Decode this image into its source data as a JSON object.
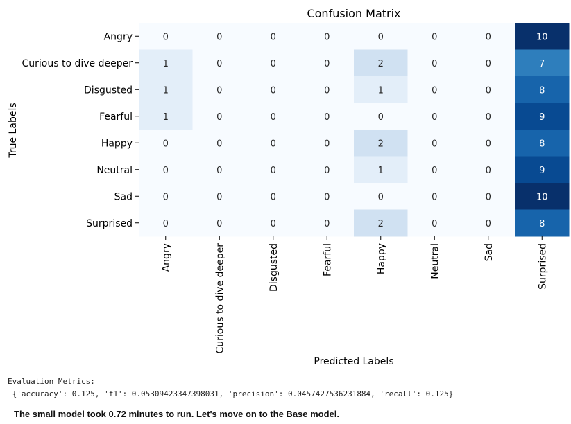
{
  "chart_data": {
    "type": "heatmap",
    "title": "Confusion Matrix",
    "xlabel": "Predicted Labels",
    "ylabel": "True Labels",
    "x_categories": [
      "Angry",
      "Curious to dive deeper",
      "Disgusted",
      "Fearful",
      "Happy",
      "Neutral",
      "Sad",
      "Surprised"
    ],
    "y_categories": [
      "Angry",
      "Curious to dive deeper",
      "Disgusted",
      "Fearful",
      "Happy",
      "Neutral",
      "Sad",
      "Surprised"
    ],
    "values": [
      [
        0,
        0,
        0,
        0,
        0,
        0,
        0,
        10
      ],
      [
        1,
        0,
        0,
        0,
        2,
        0,
        0,
        7
      ],
      [
        1,
        0,
        0,
        0,
        1,
        0,
        0,
        8
      ],
      [
        1,
        0,
        0,
        0,
        0,
        0,
        0,
        9
      ],
      [
        0,
        0,
        0,
        0,
        2,
        0,
        0,
        8
      ],
      [
        0,
        0,
        0,
        0,
        1,
        0,
        0,
        9
      ],
      [
        0,
        0,
        0,
        0,
        0,
        0,
        0,
        10
      ],
      [
        0,
        0,
        0,
        0,
        2,
        0,
        0,
        8
      ]
    ],
    "value_range": [
      0,
      10
    ],
    "colormap": "Blues",
    "colorbar": false
  },
  "output": {
    "metrics_label": "Evaluation Metrics:",
    "metrics_value": " {'accuracy': 0.125, 'f1': 0.05309423347398031, 'precision': 0.0457427536231884, 'recall': 0.125}",
    "note": "The small model took 0.72 minutes to run. Let's move on to the Base model."
  }
}
